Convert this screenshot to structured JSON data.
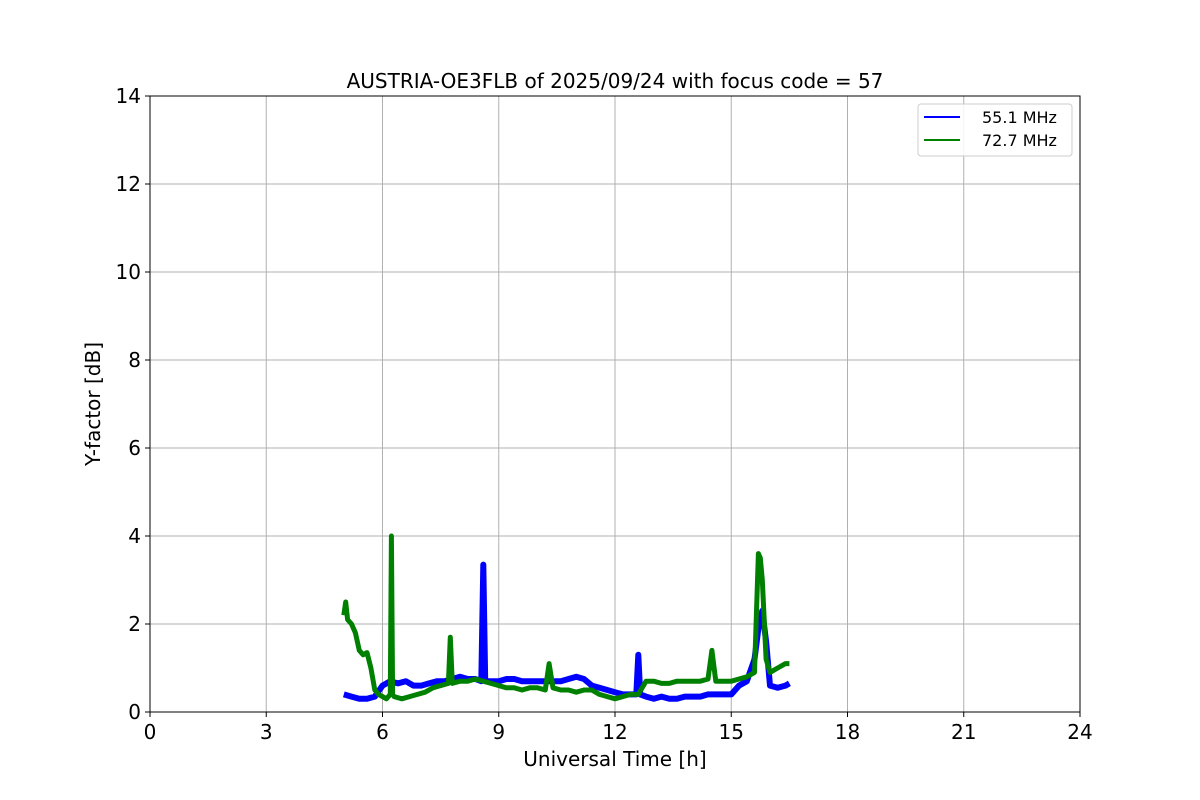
{
  "chart_data": {
    "type": "line",
    "title": "AUSTRIA-OE3FLB of 2025/09/24 with focus code = 57",
    "xlabel": "Universal Time [h]",
    "ylabel": "Y-factor [dB]",
    "xlim": [
      0,
      24
    ],
    "ylim": [
      0,
      14
    ],
    "xticks": [
      0,
      3,
      6,
      9,
      12,
      15,
      18,
      21,
      24
    ],
    "yticks": [
      0,
      2,
      4,
      6,
      8,
      10,
      12,
      14
    ],
    "grid": true,
    "legend_position": "top-right",
    "series": [
      {
        "name": "55.1 MHz",
        "color": "#0000ff",
        "x": [
          5.0,
          5.2,
          5.4,
          5.6,
          5.8,
          6.0,
          6.2,
          6.4,
          6.6,
          6.8,
          7.0,
          7.2,
          7.4,
          7.6,
          7.8,
          8.0,
          8.2,
          8.4,
          8.55,
          8.6,
          8.65,
          8.8,
          9.0,
          9.2,
          9.4,
          9.6,
          9.8,
          10.0,
          10.2,
          10.4,
          10.6,
          10.8,
          11.0,
          11.2,
          11.4,
          11.6,
          11.8,
          12.0,
          12.2,
          12.4,
          12.55,
          12.6,
          12.65,
          12.8,
          13.0,
          13.2,
          13.4,
          13.6,
          13.8,
          14.0,
          14.2,
          14.4,
          14.6,
          14.8,
          15.0,
          15.2,
          15.4,
          15.6,
          15.7,
          15.8,
          15.9,
          16.0,
          16.2,
          16.4,
          16.5
        ],
        "y": [
          0.4,
          0.35,
          0.3,
          0.3,
          0.35,
          0.6,
          0.7,
          0.65,
          0.7,
          0.6,
          0.6,
          0.65,
          0.7,
          0.7,
          0.75,
          0.8,
          0.75,
          0.75,
          0.7,
          3.35,
          0.7,
          0.7,
          0.7,
          0.75,
          0.75,
          0.7,
          0.7,
          0.7,
          0.7,
          0.7,
          0.7,
          0.75,
          0.8,
          0.75,
          0.6,
          0.55,
          0.5,
          0.45,
          0.4,
          0.4,
          0.4,
          1.3,
          0.4,
          0.35,
          0.3,
          0.35,
          0.3,
          0.3,
          0.35,
          0.35,
          0.35,
          0.4,
          0.4,
          0.4,
          0.4,
          0.6,
          0.7,
          1.2,
          1.9,
          2.3,
          1.6,
          0.6,
          0.55,
          0.6,
          0.65
        ]
      },
      {
        "name": "72.7 MHz",
        "color": "#008000",
        "x": [
          5.0,
          5.05,
          5.1,
          5.2,
          5.3,
          5.4,
          5.5,
          5.6,
          5.7,
          5.8,
          5.9,
          6.0,
          6.1,
          6.2,
          6.23,
          6.26,
          6.3,
          6.5,
          6.7,
          6.9,
          7.1,
          7.3,
          7.5,
          7.7,
          7.75,
          7.8,
          8.0,
          8.2,
          8.4,
          8.6,
          8.8,
          9.0,
          9.2,
          9.4,
          9.6,
          9.8,
          10.0,
          10.2,
          10.3,
          10.4,
          10.6,
          10.8,
          11.0,
          11.2,
          11.4,
          11.6,
          11.8,
          12.0,
          12.2,
          12.4,
          12.6,
          12.8,
          13.0,
          13.2,
          13.4,
          13.6,
          13.8,
          14.0,
          14.2,
          14.4,
          14.5,
          14.6,
          14.8,
          15.0,
          15.2,
          15.4,
          15.6,
          15.7,
          15.75,
          15.8,
          15.9,
          16.0,
          16.2,
          16.4,
          16.5
        ],
        "y": [
          2.2,
          2.5,
          2.1,
          2.0,
          1.8,
          1.4,
          1.3,
          1.35,
          1.0,
          0.5,
          0.4,
          0.35,
          0.3,
          0.4,
          4.0,
          0.4,
          0.35,
          0.3,
          0.35,
          0.4,
          0.45,
          0.55,
          0.6,
          0.65,
          1.7,
          0.65,
          0.7,
          0.7,
          0.75,
          0.7,
          0.65,
          0.6,
          0.55,
          0.55,
          0.5,
          0.55,
          0.55,
          0.5,
          1.1,
          0.55,
          0.5,
          0.5,
          0.45,
          0.5,
          0.5,
          0.4,
          0.35,
          0.3,
          0.35,
          0.4,
          0.4,
          0.7,
          0.7,
          0.65,
          0.65,
          0.7,
          0.7,
          0.7,
          0.7,
          0.75,
          1.4,
          0.7,
          0.7,
          0.7,
          0.75,
          0.8,
          0.9,
          3.6,
          3.5,
          3.0,
          1.2,
          0.9,
          1.0,
          1.1,
          1.1
        ]
      }
    ]
  }
}
